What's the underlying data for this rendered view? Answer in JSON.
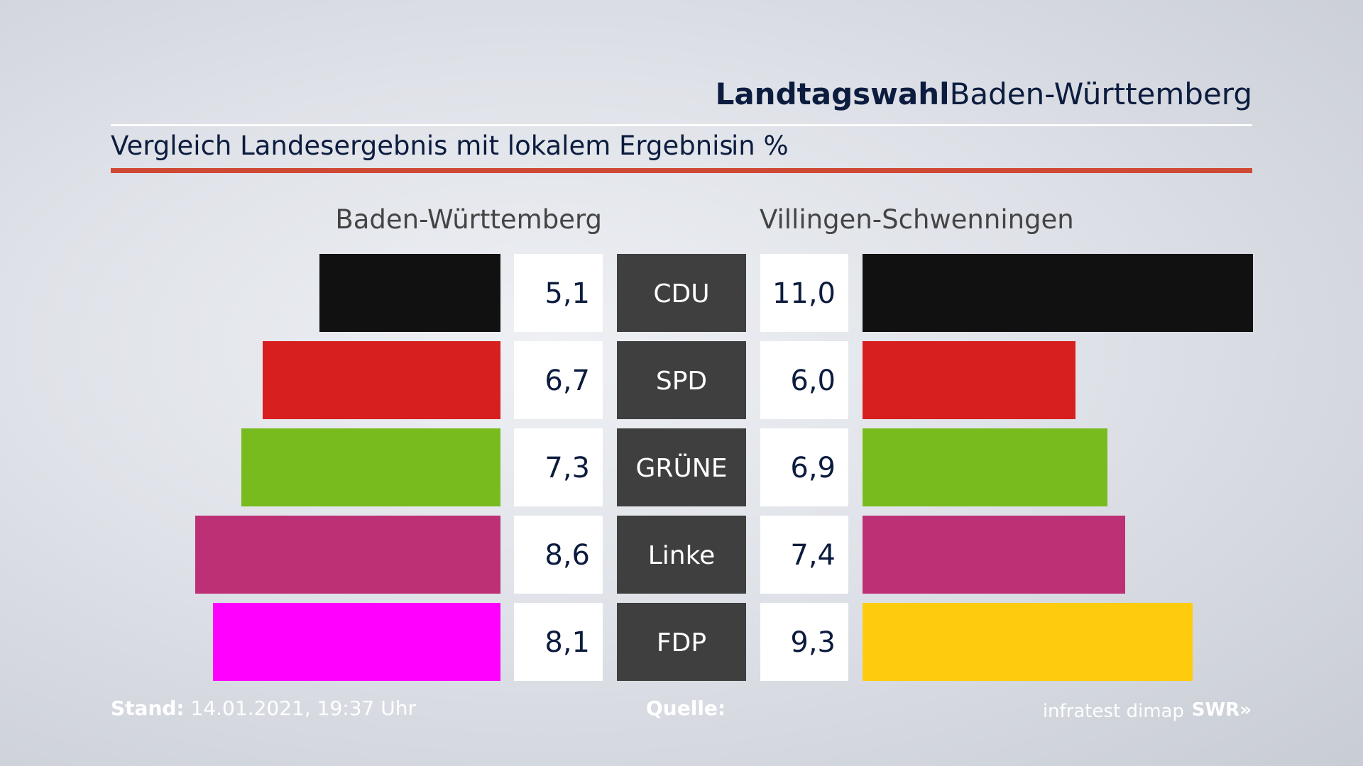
{
  "header": {
    "title_strong": "Landtagswahl",
    "title_region": "Baden-Württemberg",
    "subtitle": "Vergleich Landesergebnis mit lokalem Ergebnis",
    "unit": "in %",
    "accent_color": "#cf4a35"
  },
  "chart_data": {
    "type": "bar",
    "orientation": "horizontal-butterfly",
    "categories": [
      "CDU",
      "SPD",
      "GRÜNE",
      "Linke",
      "FDP"
    ],
    "series": [
      {
        "name": "Baden-Württemberg",
        "values": [
          5.1,
          6.7,
          7.3,
          8.6,
          8.1
        ],
        "labels": [
          "5,1",
          "6,7",
          "7,3",
          "8,6",
          "8,1"
        ],
        "colors": [
          "#111111",
          "#d71f1f",
          "#78bb1e",
          "#bd3075",
          "#ff00ff"
        ]
      },
      {
        "name": "Villingen-Schwenningen",
        "values": [
          11.0,
          6.0,
          6.9,
          7.4,
          9.3
        ],
        "labels": [
          "11,0",
          "6,0",
          "6,9",
          "7,4",
          "9,3"
        ],
        "colors": [
          "#111111",
          "#d71f1f",
          "#78bb1e",
          "#bd3075",
          "#fecc0c"
        ]
      }
    ],
    "xlim": [
      0,
      11.0
    ],
    "grid": false,
    "legend": "none"
  },
  "footer": {
    "stand_label": "Stand:",
    "stand_value": "14.01.2021, 19:37 Uhr",
    "quelle_label": "Quelle:",
    "source_name": "infratest dimap",
    "broadcaster": "SWR»"
  }
}
